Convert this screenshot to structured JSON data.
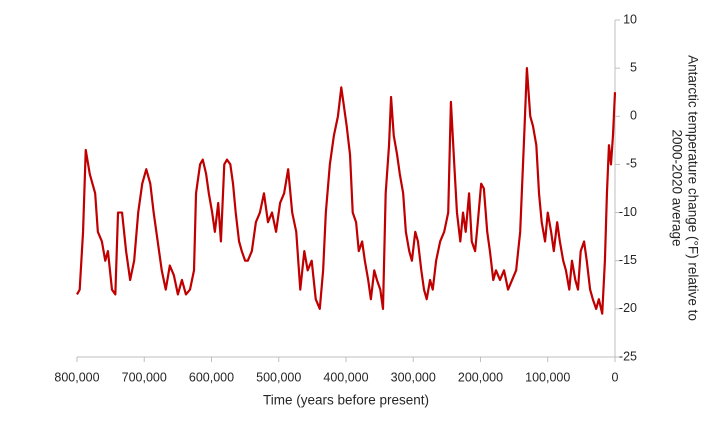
{
  "chart_data": {
    "type": "line",
    "xlabel": "Time (years before present)",
    "ylabel": [
      "Antarctic temperature change (°F) relative to",
      "2000-2020 average"
    ],
    "color": "#c00000",
    "xlim": [
      800000,
      0
    ],
    "xticks": [
      {
        "value": 800000,
        "label": "800,000"
      },
      {
        "value": 700000,
        "label": "700,000"
      },
      {
        "value": 600000,
        "label": "600,000"
      },
      {
        "value": 500000,
        "label": "500,000"
      },
      {
        "value": 400000,
        "label": "400,000"
      },
      {
        "value": 300000,
        "label": "300,000"
      },
      {
        "value": 200000,
        "label": "200,000"
      },
      {
        "value": 100000,
        "label": "100,000"
      },
      0
    ],
    "ylim": [
      -25,
      10
    ],
    "yticks": [
      -25,
      -20,
      -15,
      -10,
      -5,
      0,
      5,
      10
    ],
    "x": [
      800000,
      796000,
      791000,
      787000,
      781000,
      773000,
      769000,
      763000,
      758000,
      754000,
      748000,
      743000,
      739000,
      733000,
      727000,
      721000,
      715000,
      709000,
      703000,
      697000,
      691000,
      686000,
      680000,
      674000,
      668000,
      662000,
      656000,
      650000,
      644000,
      638000,
      632000,
      626000,
      623000,
      617000,
      613000,
      608000,
      604000,
      599000,
      595000,
      590000,
      586000,
      581000,
      577000,
      572000,
      568000,
      564000,
      559000,
      555000,
      550000,
      546000,
      540000,
      534000,
      528000,
      522000,
      516000,
      510000,
      504000,
      498000,
      492000,
      486000,
      480000,
      474000,
      468000,
      462000,
      457000,
      451000,
      445000,
      439000,
      434000,
      430000,
      424000,
      418000,
      412000,
      407000,
      403000,
      399000,
      394000,
      390000,
      385000,
      381000,
      376000,
      372000,
      367000,
      363000,
      358000,
      354000,
      349000,
      345000,
      341000,
      336000,
      333000,
      329000,
      324000,
      320000,
      315000,
      311000,
      306000,
      302000,
      297000,
      293000,
      288000,
      284000,
      280000,
      275000,
      271000,
      266000,
      260000,
      254000,
      248000,
      244000,
      239000,
      235000,
      230000,
      226000,
      222000,
      217000,
      213000,
      208000,
      204000,
      199000,
      195000,
      190000,
      186000,
      181000,
      177000,
      171000,
      165000,
      159000,
      153000,
      147000,
      141000,
      135000,
      131000,
      126000,
      122000,
      117000,
      113000,
      109000,
      104000,
      100000,
      95000,
      91000,
      86000,
      82000,
      77000,
      73000,
      68000,
      64000,
      59000,
      55000,
      51000,
      46000,
      42000,
      37000,
      33000,
      28000,
      24000,
      19000,
      15000,
      12000,
      9000,
      6000,
      3000,
      0
    ],
    "values": [
      -18.5,
      -18,
      -12,
      -3.5,
      -6,
      -8,
      -12,
      -13,
      -15,
      -14,
      -18,
      -18.5,
      -10,
      -10,
      -14,
      -17,
      -15,
      -10,
      -7,
      -5.5,
      -7,
      -10,
      -13,
      -16,
      -18,
      -15.5,
      -16.5,
      -18.5,
      -17,
      -18.5,
      -18,
      -16,
      -8,
      -5,
      -4.5,
      -6,
      -8,
      -10,
      -12,
      -9,
      -13,
      -5,
      -4.5,
      -5,
      -7,
      -10,
      -13,
      -14,
      -15,
      -15,
      -14,
      -11,
      -10,
      -8,
      -11,
      -10,
      -12,
      -9,
      -8,
      -5.5,
      -10,
      -12,
      -18,
      -14,
      -16,
      -15,
      -19,
      -20,
      -16,
      -10,
      -5,
      -2,
      0,
      3,
      1,
      -1,
      -4,
      -10,
      -11,
      -14,
      -13,
      -15,
      -17,
      -19,
      -16,
      -17,
      -18,
      -20,
      -8,
      -3,
      2,
      -2,
      -4,
      -6,
      -8,
      -12,
      -14,
      -15,
      -12,
      -13,
      -16,
      -18,
      -19,
      -17,
      -18,
      -15,
      -13,
      -12,
      -10,
      1.5,
      -5,
      -10,
      -13,
      -10,
      -12,
      -8,
      -13,
      -14,
      -11,
      -7,
      -7.5,
      -12,
      -14,
      -17,
      -16,
      -17,
      -16,
      -18,
      -17,
      -16,
      -12,
      -2,
      5,
      0,
      -1,
      -3,
      -8,
      -11,
      -13,
      -10,
      -12,
      -14,
      -11,
      -13,
      -15,
      -16,
      -18,
      -15,
      -17,
      -18,
      -14,
      -13,
      -15,
      -18,
      -19,
      -20,
      -19,
      -20.5,
      -15,
      -8,
      -3,
      -5,
      -2,
      2.5
    ]
  }
}
